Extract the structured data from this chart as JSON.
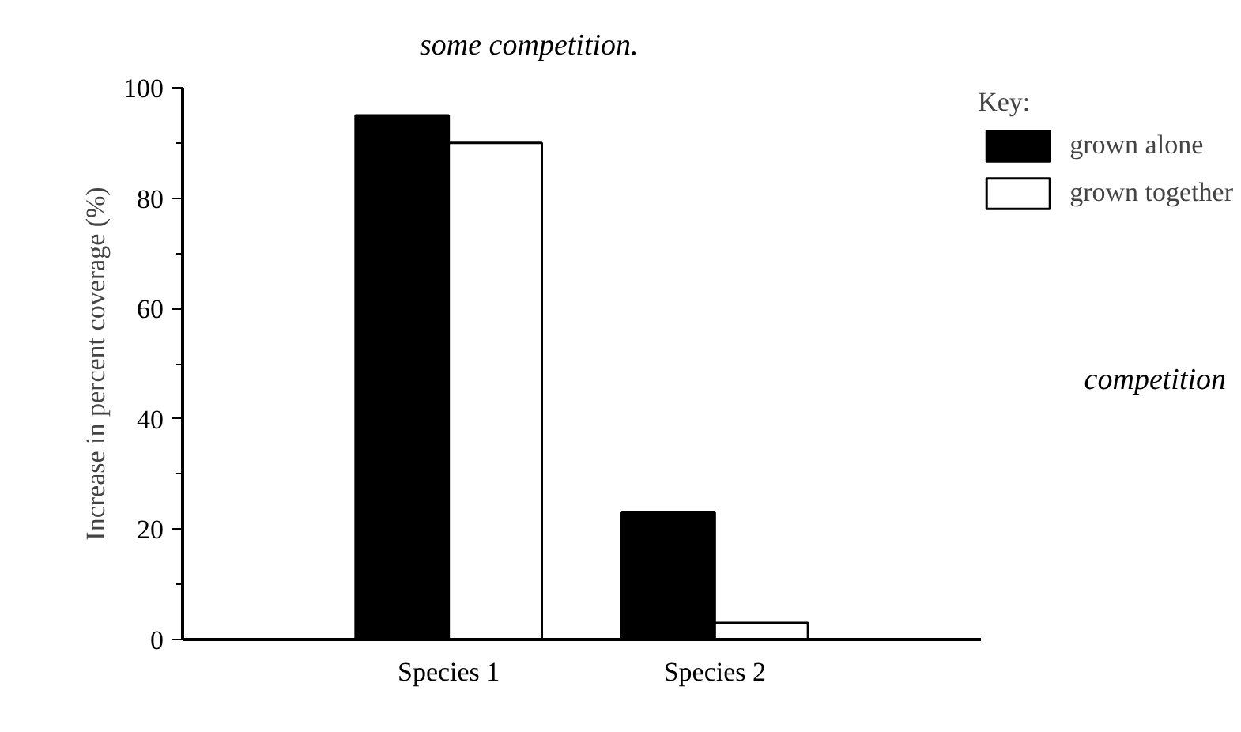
{
  "chart_data": {
    "type": "bar",
    "ylabel": "Increase in percent coverage (%)",
    "categories": [
      "Species 1",
      "Species 2"
    ],
    "series": [
      {
        "name": "grown alone",
        "color": "#000000",
        "values": [
          95,
          23
        ]
      },
      {
        "name": "grown together",
        "color": "#ffffff",
        "values": [
          90,
          3
        ]
      }
    ],
    "ylim": [
      0,
      100
    ],
    "yticks": [
      0,
      20,
      40,
      60,
      80,
      100
    ],
    "grid": false,
    "legend": "top right",
    "legend_title": "Key:",
    "annotations": [
      "some competition.",
      "competition"
    ]
  }
}
